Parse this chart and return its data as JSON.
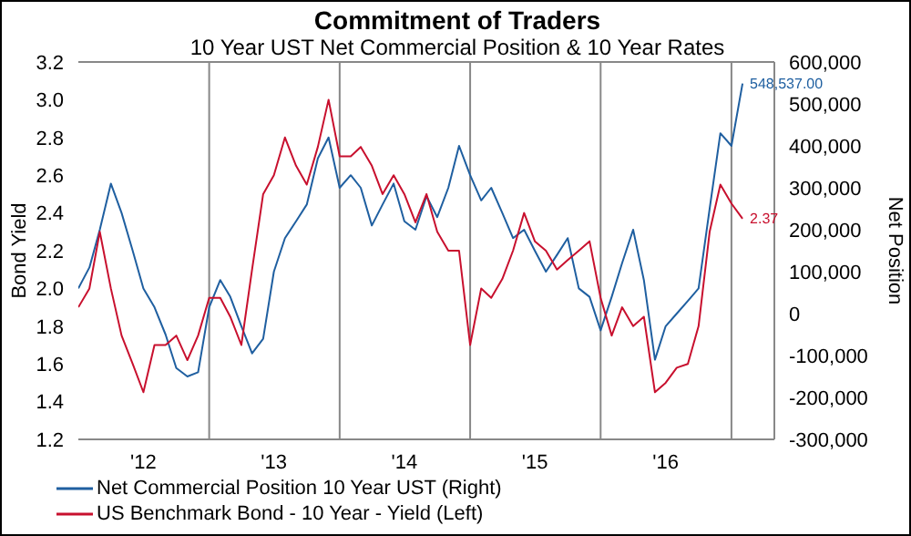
{
  "chart_data": {
    "type": "line",
    "title": "Commitment of Traders",
    "subtitle": "10 Year UST Net Commercial Position & 10 Year Rates",
    "ylabel": "Bond Yield",
    "y2label": "Net Position",
    "x": [
      "2012-01",
      "2012-02",
      "2012-03",
      "2012-04",
      "2012-05",
      "2012-06",
      "2012-07",
      "2012-08",
      "2012-09",
      "2012-10",
      "2012-11",
      "2012-12",
      "2013-01",
      "2013-02",
      "2013-03",
      "2013-04",
      "2013-05",
      "2013-06",
      "2013-07",
      "2013-08",
      "2013-09",
      "2013-10",
      "2013-11",
      "2013-12",
      "2014-01",
      "2014-02",
      "2014-03",
      "2014-04",
      "2014-05",
      "2014-06",
      "2014-07",
      "2014-08",
      "2014-09",
      "2014-10",
      "2014-11",
      "2014-12",
      "2015-01",
      "2015-02",
      "2015-03",
      "2015-04",
      "2015-05",
      "2015-06",
      "2015-07",
      "2015-08",
      "2015-09",
      "2015-10",
      "2015-11",
      "2015-12",
      "2016-01",
      "2016-02",
      "2016-03",
      "2016-04",
      "2016-05",
      "2016-06",
      "2016-07",
      "2016-08",
      "2016-09",
      "2016-10",
      "2016-11",
      "2016-12",
      "2017-01",
      "2017-02"
    ],
    "series": [
      {
        "name": "Net Commercial Position 10 Year UST (Right)",
        "color": "#1f5fa0",
        "axis": "y2",
        "values": [
          60000,
          110000,
          200000,
          310000,
          240000,
          150000,
          60000,
          15000,
          -50000,
          -130000,
          -150000,
          -140000,
          15000,
          80000,
          40000,
          -30000,
          -95000,
          -60000,
          100000,
          180000,
          220000,
          260000,
          370000,
          420000,
          300000,
          330000,
          300000,
          210000,
          260000,
          310000,
          220000,
          200000,
          280000,
          230000,
          300000,
          400000,
          330000,
          270000,
          300000,
          240000,
          180000,
          200000,
          150000,
          100000,
          140000,
          180000,
          60000,
          40000,
          -40000,
          40000,
          120000,
          200000,
          80000,
          -110000,
          -30000,
          0,
          30000,
          60000,
          250000,
          430000,
          400000,
          548537
        ]
      },
      {
        "name": "US Benchmark Bond - 10 Year - Yield  (Left)",
        "color": "#c8102e",
        "values": [
          1.9,
          2.0,
          2.3,
          2.0,
          1.75,
          1.6,
          1.45,
          1.7,
          1.7,
          1.75,
          1.62,
          1.75,
          1.95,
          1.95,
          1.85,
          1.7,
          2.1,
          2.5,
          2.6,
          2.8,
          2.65,
          2.55,
          2.75,
          3.0,
          2.7,
          2.7,
          2.75,
          2.65,
          2.5,
          2.6,
          2.5,
          2.35,
          2.5,
          2.3,
          2.2,
          2.2,
          1.7,
          2.0,
          1.95,
          2.05,
          2.2,
          2.4,
          2.25,
          2.2,
          2.1,
          2.15,
          2.2,
          2.25,
          1.95,
          1.75,
          1.9,
          1.8,
          1.85,
          1.45,
          1.5,
          1.58,
          1.6,
          1.8,
          2.3,
          2.55,
          2.45,
          2.37
        ]
      }
    ],
    "annotations": [
      "548,537.00",
      "2.37"
    ],
    "xlim": [
      "2012-01",
      "2017-05"
    ],
    "xticks": [
      {
        "value": "2012-07",
        "label": "'12"
      },
      {
        "value": "2013-01",
        "label": null
      },
      {
        "value": "2013-07",
        "label": "'13"
      },
      {
        "value": "2014-01",
        "label": null
      },
      {
        "value": "2014-07",
        "label": "'14"
      },
      {
        "value": "2015-01",
        "label": null
      },
      {
        "value": "2015-07",
        "label": "'15"
      },
      {
        "value": "2016-01",
        "label": null
      },
      {
        "value": "2016-07",
        "label": "'16"
      },
      {
        "value": "2017-01",
        "label": null
      }
    ],
    "ylim": [
      1.2,
      3.2
    ],
    "yticks": [
      1.2,
      1.4,
      1.6,
      1.8,
      {
        "value": 2,
        "label": "2.0"
      },
      2.2,
      2.4,
      2.6,
      2.8,
      {
        "value": 3,
        "label": "3.0"
      },
      3.2
    ],
    "y2lim": [
      -300000,
      600000
    ],
    "y2ticks": [
      {
        "value": -300000,
        "label": "-300,000"
      },
      {
        "value": -200000,
        "label": "-200,000"
      },
      {
        "value": -100000,
        "label": "-100,000"
      },
      0,
      {
        "value": 100000,
        "label": "100,000"
      },
      {
        "value": 200000,
        "label": "200,000"
      },
      {
        "value": 300000,
        "label": "300,000"
      },
      {
        "value": 400000,
        "label": "400,000"
      },
      {
        "value": 500000,
        "label": "500,000"
      },
      {
        "value": 600000,
        "label": "600,000"
      }
    ],
    "grid": true,
    "legend": "bottom left",
    "marker": "none",
    "line_style": "solid"
  }
}
